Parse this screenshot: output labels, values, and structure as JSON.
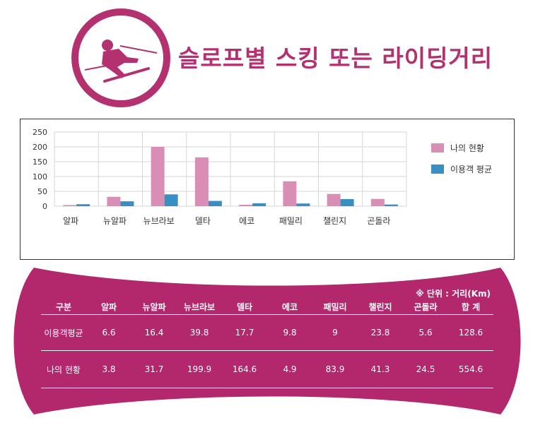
{
  "title": "슬로프별 스킹 또는 라이딩거리",
  "colors": {
    "brand": "#b3316f",
    "series_mine": "#d98fb5",
    "series_avg": "#3a8fc1"
  },
  "icon": "skier-icon",
  "chart_data": {
    "type": "bar",
    "categories": [
      "알파",
      "뉴알파",
      "뉴브라보",
      "델타",
      "에코",
      "패밀리",
      "챌린지",
      "곤돌라"
    ],
    "series": [
      {
        "name": "나의 현황",
        "values": [
          3.8,
          31.7,
          199.9,
          164.6,
          4.9,
          83.9,
          41.3,
          24.5
        ]
      },
      {
        "name": "이용객 평균",
        "values": [
          6.6,
          16.4,
          39.8,
          17.7,
          9.8,
          9,
          23.8,
          5.6
        ]
      }
    ],
    "yticks": [
      0,
      50,
      100,
      150,
      200,
      250
    ],
    "ylim": [
      0,
      250
    ],
    "grid": true,
    "legend": "right"
  },
  "table": {
    "unit_note": "※ 단위 : 거리(Km)",
    "headers": [
      "구분",
      "알파",
      "뉴알파",
      "뉴브라보",
      "델타",
      "에코",
      "패밀리",
      "챌린지",
      "곤돌라",
      "합 계"
    ],
    "rows": [
      [
        "이용객평균",
        "6.6",
        "16.4",
        "39.8",
        "17.7",
        "9.8",
        "9",
        "23.8",
        "5.6",
        "128.6"
      ],
      [
        "나의 현황",
        "3.8",
        "31.7",
        "199.9",
        "164.6",
        "4.9",
        "83.9",
        "41.3",
        "24.5",
        "554.6"
      ]
    ]
  }
}
